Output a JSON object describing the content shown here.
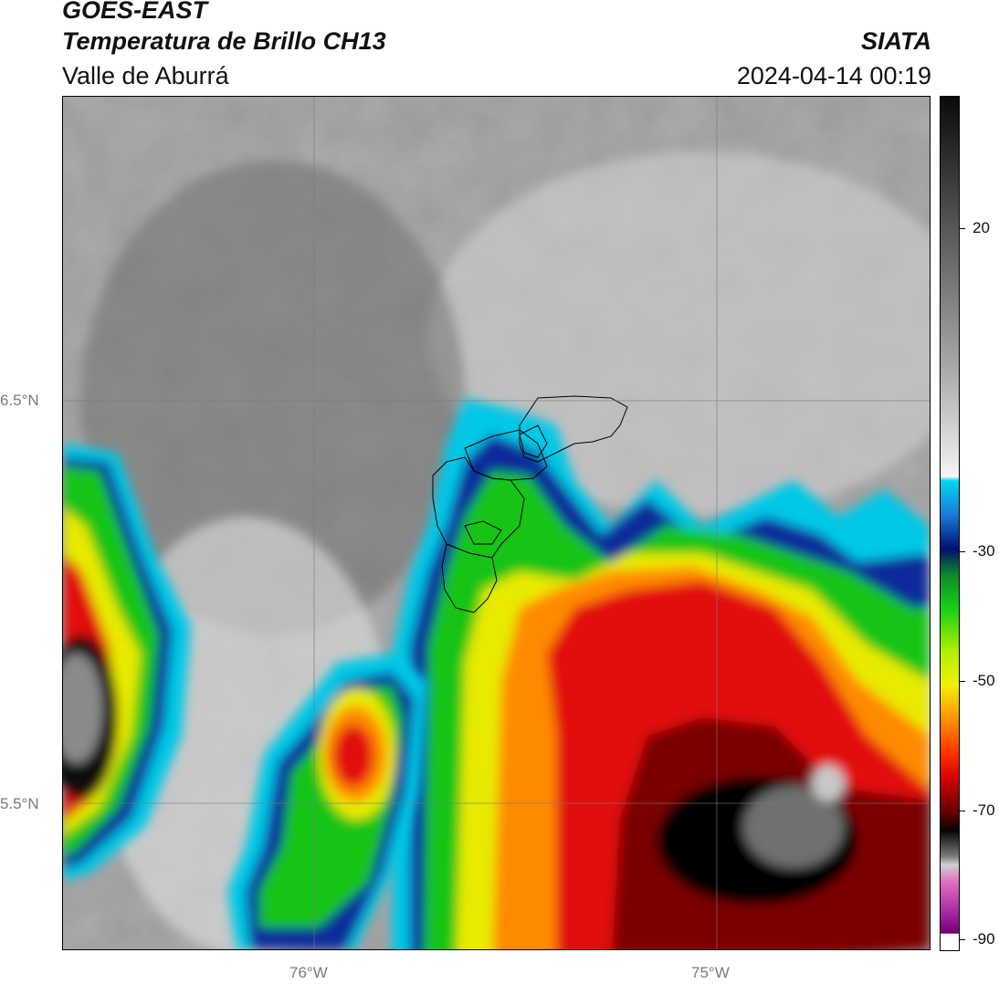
{
  "header": {
    "title_line1": "GOES-EAST",
    "title_line2": "Temperatura de Brillo CH13",
    "title_line3": "Valle de Aburrá",
    "org": "SIATA",
    "datetime": "2024-04-14 00:19"
  },
  "axes": {
    "lat_labels": [
      "6.5°N",
      "5.5°N"
    ],
    "lon_labels": [
      "76°W",
      "75°W"
    ]
  },
  "colorbar": {
    "tick_labels": [
      "20",
      "-30",
      "-50",
      "-70",
      "-90"
    ],
    "colors": {
      "warm_gray_dark": "#2a2a2a",
      "gray_mid": "#888888",
      "white": "#f2f2f2",
      "cyan": "#00c8e6",
      "blue": "#1060c0",
      "navy": "#001a80",
      "green": "#10c810",
      "yellow_green": "#aaee00",
      "yellow": "#f0f000",
      "orange": "#ff8000",
      "red": "#e00000",
      "dark_red": "#700000",
      "black": "#050505",
      "light_gray": "#c8c8c8",
      "pink": "#e060c0",
      "purple": "#800080"
    }
  }
}
